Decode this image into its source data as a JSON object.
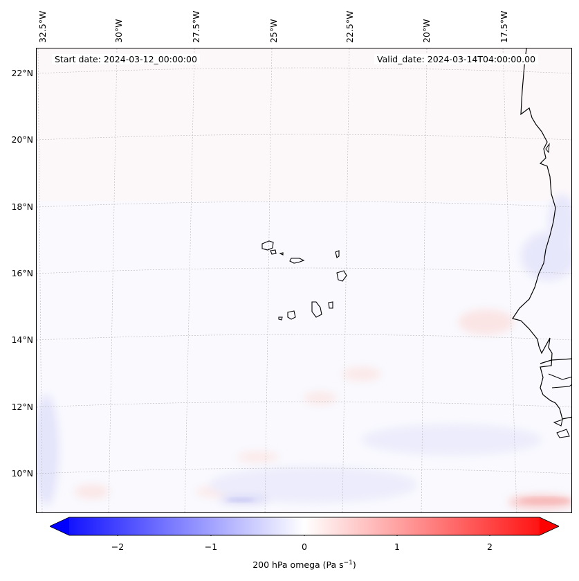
{
  "header": {
    "start_date": "Start date: 2024-03-12_00:00:00",
    "valid_date": "Valid_date: 2024-03-14T04:00:00.00"
  },
  "map": {
    "longitude_labels": [
      "32.5°W",
      "30°W",
      "27.5°W",
      "25°W",
      "22.5°W",
      "20°W",
      "17.5°W"
    ],
    "latitude_labels": [
      "22°N",
      "20°N",
      "18°N",
      "16°N",
      "14°N",
      "12°N",
      "10°N"
    ],
    "field": "200 hPa omega",
    "colormap": "bwr",
    "low_color": "#0000ff",
    "mid_color": "#ffffff",
    "high_color": "#ff0000",
    "coastline_color": "#000000"
  },
  "colorbar": {
    "ticks": [
      "−2",
      "−1",
      "0",
      "1",
      "2"
    ],
    "range": [
      -2.6,
      2.6
    ],
    "label_prefix": "200 hPa omega (Pa s",
    "label_exp": "−1",
    "label_suffix": ")"
  }
}
